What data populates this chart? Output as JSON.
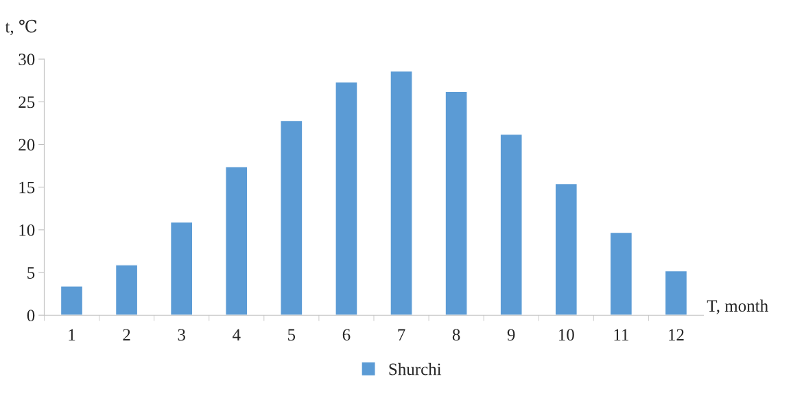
{
  "chart_data": {
    "type": "bar",
    "ylabel": "t, ℃",
    "xlabel": "T, month",
    "categories": [
      "1",
      "2",
      "3",
      "4",
      "5",
      "6",
      "7",
      "8",
      "9",
      "10",
      "11",
      "12"
    ],
    "series": [
      {
        "name": "Shurchi",
        "color": "#5b9bd5",
        "values": [
          3.4,
          5.9,
          10.9,
          17.4,
          22.8,
          27.3,
          28.6,
          26.2,
          21.2,
          15.4,
          9.7,
          5.2
        ]
      }
    ],
    "ylim": [
      0,
      30
    ],
    "yticks": [
      0,
      5,
      10,
      15,
      20,
      25,
      30
    ],
    "grid": false,
    "legend": "bottom"
  }
}
